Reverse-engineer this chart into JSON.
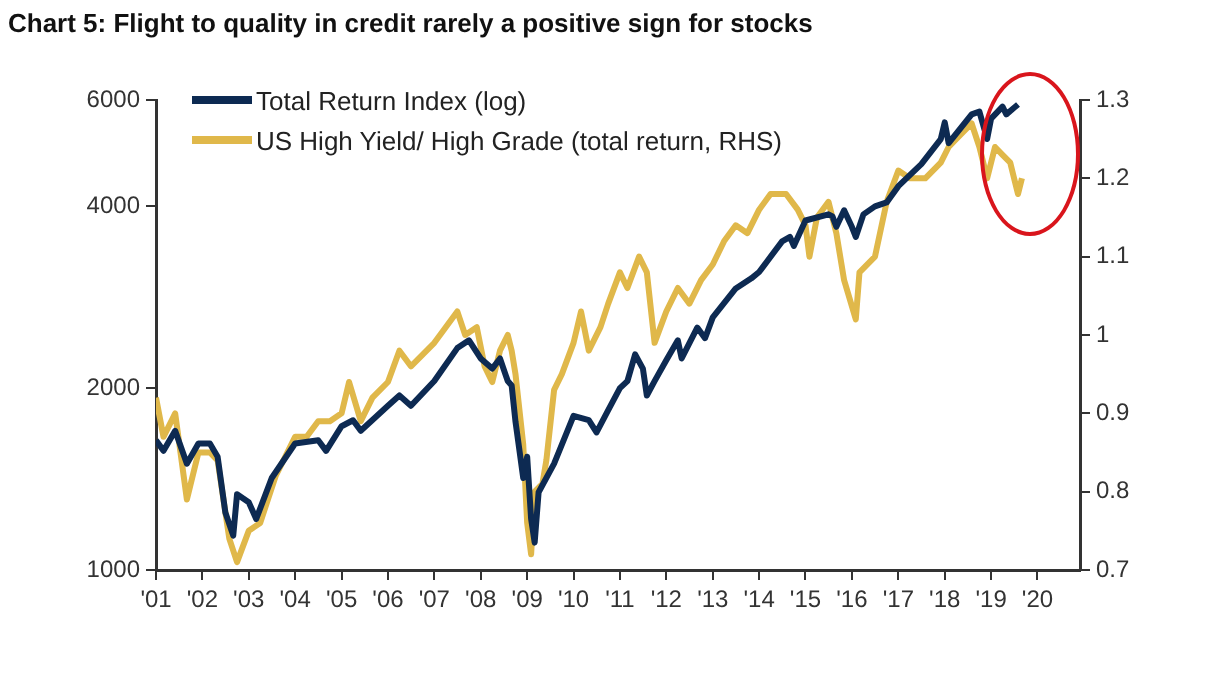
{
  "chart_data": {
    "type": "line",
    "title": "Chart 5: Flight to quality in credit rarely a positive sign for stocks",
    "legend": "top left",
    "grid": false,
    "log": "y",
    "xlim": [
      "2001-01",
      "2020-12"
    ],
    "xticks": [
      {
        "value": "2001",
        "label": "'01"
      },
      {
        "value": "2002",
        "label": "'02"
      },
      {
        "value": "2003",
        "label": "'03"
      },
      {
        "value": "2004",
        "label": "'04"
      },
      {
        "value": "2005",
        "label": "'05"
      },
      {
        "value": "2006",
        "label": "'06"
      },
      {
        "value": "2007",
        "label": "'07"
      },
      {
        "value": "2008",
        "label": "'08"
      },
      {
        "value": "2009",
        "label": "'09"
      },
      {
        "value": "2010",
        "label": "'10"
      },
      {
        "value": "2011",
        "label": "'11"
      },
      {
        "value": "2012",
        "label": "'12"
      },
      {
        "value": "2013",
        "label": "'13"
      },
      {
        "value": "2014",
        "label": "'14"
      },
      {
        "value": "2015",
        "label": "'15"
      },
      {
        "value": "2016",
        "label": "'16"
      },
      {
        "value": "2017",
        "label": "'17"
      },
      {
        "value": "2018",
        "label": "'18"
      },
      {
        "value": "2019",
        "label": "'19"
      },
      {
        "value": "2020",
        "label": "'20"
      }
    ],
    "ylim": [
      1000,
      6000
    ],
    "yticks": [
      1000,
      2000,
      4000,
      6000
    ],
    "y2lim": [
      0.7,
      1.3
    ],
    "y2ticks": [
      0.7,
      0.8,
      0.9,
      1,
      1.1,
      1.2,
      1.3
    ],
    "series": [
      {
        "name": "Total Return Index (log)",
        "color": "#0d2a52",
        "x": [
          "2001-01",
          "2001-03",
          "2001-06",
          "2001-09",
          "2001-12",
          "2002-03",
          "2002-05",
          "2002-07",
          "2002-09",
          "2002-10",
          "2003-01",
          "2003-03",
          "2003-07",
          "2004-01",
          "2004-07",
          "2004-09",
          "2005-01",
          "2005-04",
          "2005-06",
          "2006-01",
          "2006-04",
          "2006-07",
          "2007-01",
          "2007-07",
          "2007-10",
          "2008-01",
          "2008-04",
          "2008-06",
          "2008-08",
          "2008-09",
          "2008-10",
          "2008-12",
          "2009-01",
          "2009-02",
          "2009-03",
          "2009-04",
          "2009-08",
          "2010-01",
          "2010-05",
          "2010-07",
          "2010-10",
          "2011-01",
          "2011-03",
          "2011-05",
          "2011-07",
          "2011-08",
          "2011-10",
          "2012-01",
          "2012-04",
          "2012-05",
          "2012-09",
          "2012-11",
          "2013-01",
          "2013-07",
          "2013-11",
          "2014-01",
          "2014-07",
          "2014-09",
          "2014-10",
          "2015-01",
          "2015-07",
          "2015-08",
          "2015-09",
          "2015-11",
          "2016-01",
          "2016-02",
          "2016-04",
          "2016-07",
          "2016-10",
          "2017-01",
          "2017-07",
          "2017-12",
          "2018-01",
          "2018-02",
          "2018-08",
          "2018-10",
          "2018-12",
          "2019-01",
          "2019-04",
          "2019-05",
          "2019-08"
        ],
        "values": [
          1640,
          1575,
          1700,
          1500,
          1620,
          1620,
          1540,
          1245,
          1140,
          1335,
          1295,
          1215,
          1420,
          1620,
          1640,
          1575,
          1730,
          1770,
          1700,
          1870,
          1945,
          1870,
          2055,
          2330,
          2400,
          2240,
          2155,
          2240,
          2055,
          2020,
          1760,
          1420,
          1540,
          1215,
          1110,
          1345,
          1500,
          1800,
          1770,
          1690,
          1840,
          2000,
          2055,
          2275,
          2155,
          1945,
          2055,
          2225,
          2400,
          2240,
          2520,
          2420,
          2620,
          2925,
          3040,
          3115,
          3500,
          3560,
          3440,
          3790,
          3880,
          3850,
          3700,
          3940,
          3700,
          3560,
          3880,
          4000,
          4060,
          4320,
          4700,
          5170,
          5510,
          5090,
          5680,
          5740,
          5170,
          5590,
          5850,
          5680,
          5900
        ]
      },
      {
        "name": "US High Yield/ High Grade (total return, RHS)",
        "color": "#e0b84a",
        "axis": "y2",
        "x": [
          "2001-01",
          "2001-03",
          "2001-06",
          "2001-09",
          "2001-12",
          "2002-03",
          "2002-05",
          "2002-08",
          "2002-10",
          "2003-01",
          "2003-04",
          "2003-08",
          "2004-01",
          "2004-04",
          "2004-07",
          "2004-10",
          "2005-01",
          "2005-03",
          "2005-06",
          "2005-09",
          "2006-01",
          "2006-04",
          "2006-07",
          "2007-01",
          "2007-04",
          "2007-07",
          "2007-09",
          "2007-12",
          "2008-02",
          "2008-04",
          "2008-06",
          "2008-08",
          "2008-09",
          "2008-10",
          "2008-12",
          "2009-01",
          "2009-02",
          "2009-03",
          "2009-05",
          "2009-06",
          "2009-08",
          "2009-10",
          "2010-01",
          "2010-03",
          "2010-05",
          "2010-08",
          "2010-10",
          "2011-01",
          "2011-03",
          "2011-06",
          "2011-08",
          "2011-10",
          "2012-01",
          "2012-04",
          "2012-07",
          "2012-10",
          "2013-01",
          "2013-04",
          "2013-07",
          "2013-10",
          "2014-01",
          "2014-04",
          "2014-08",
          "2014-11",
          "2015-01",
          "2015-02",
          "2015-04",
          "2015-07",
          "2015-09",
          "2015-11",
          "2016-02",
          "2016-03",
          "2016-07",
          "2016-10",
          "2017-01",
          "2017-04",
          "2017-08",
          "2017-12",
          "2018-02",
          "2018-04",
          "2018-08",
          "2018-10",
          "2018-12",
          "2019-02",
          "2019-04",
          "2019-06",
          "2019-07",
          "2019-08",
          "2019-09"
        ],
        "values": [
          0.92,
          0.87,
          0.9,
          0.79,
          0.85,
          0.85,
          0.84,
          0.74,
          0.71,
          0.75,
          0.76,
          0.82,
          0.87,
          0.87,
          0.89,
          0.89,
          0.9,
          0.94,
          0.89,
          0.92,
          0.94,
          0.98,
          0.96,
          0.99,
          1.01,
          1.03,
          1,
          1.01,
          0.96,
          0.94,
          0.98,
          1,
          0.98,
          0.95,
          0.86,
          0.76,
          0.72,
          0.8,
          0.81,
          0.84,
          0.93,
          0.95,
          0.99,
          1.03,
          0.98,
          1.01,
          1.04,
          1.08,
          1.06,
          1.1,
          1.08,
          0.99,
          1.03,
          1.06,
          1.04,
          1.07,
          1.09,
          1.12,
          1.14,
          1.13,
          1.16,
          1.18,
          1.18,
          1.16,
          1.14,
          1.1,
          1.15,
          1.17,
          1.13,
          1.07,
          1.02,
          1.08,
          1.1,
          1.17,
          1.21,
          1.2,
          1.2,
          1.22,
          1.24,
          1.25,
          1.27,
          1.24,
          1.2,
          1.24,
          1.23,
          1.22,
          1.2,
          1.18,
          1.2
        ]
      }
    ]
  }
}
